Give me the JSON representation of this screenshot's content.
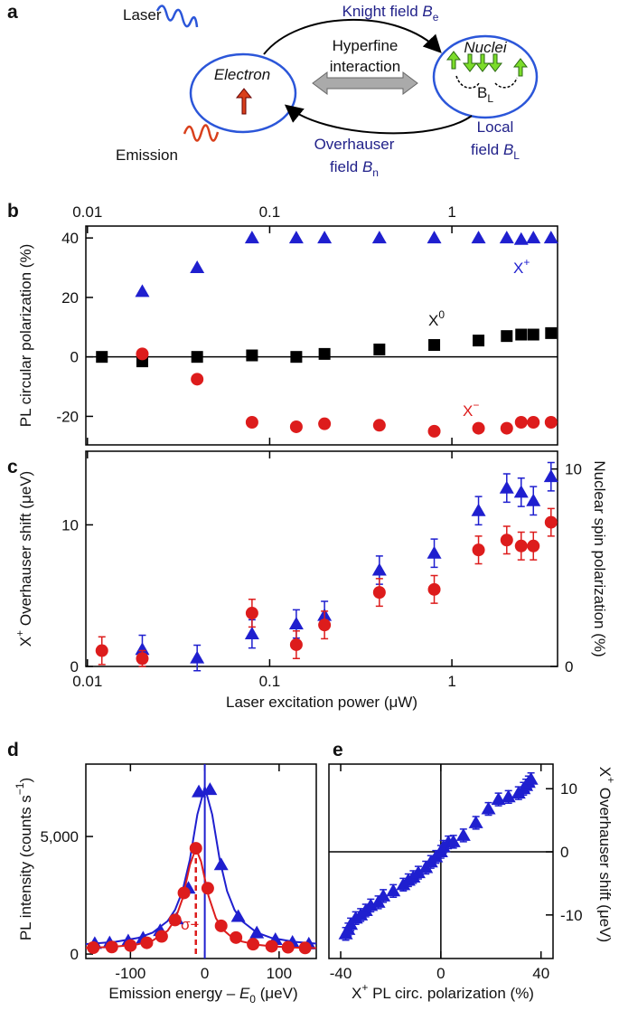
{
  "panel_labels": [
    "a",
    "b",
    "c",
    "d",
    "e"
  ],
  "diagram": {
    "laser": "Laser",
    "emission": "Emission",
    "electron": "Electron",
    "nuclei": "Nuclei",
    "knight_field": [
      "Knight field ",
      "B",
      "e"
    ],
    "hyperfine": [
      "Hyperfine",
      "interaction"
    ],
    "overhauser_field": [
      "Overhauser",
      "field ",
      "B",
      "n"
    ],
    "local_field": [
      "Local",
      "field ",
      "B",
      "L"
    ],
    "nuclear_field": [
      "B",
      "L"
    ]
  },
  "chart_data": [
    {
      "type": "scatter",
      "ylabel": "PL circular polarization (%)",
      "xscale": "log",
      "xlim": [
        0.0098,
        3.8
      ],
      "xticks": [
        0.01,
        0.1,
        1
      ],
      "xtick_position": "top",
      "ylim": [
        -29.6,
        44
      ],
      "yticks": [
        -20,
        0,
        20,
        40
      ],
      "zero_line": true,
      "series": [
        {
          "name": [
            "X",
            "+"
          ],
          "color": "#1f1fcf",
          "marker": "triangle",
          "x": [
            0.02,
            0.04,
            0.08,
            0.14,
            0.2,
            0.4,
            0.8,
            1.4,
            2,
            2.4,
            2.8,
            3.5
          ],
          "values": [
            22,
            30,
            40,
            40,
            40,
            40,
            40,
            40,
            40,
            39.5,
            40,
            40
          ]
        },
        {
          "name": [
            "X",
            "0"
          ],
          "color": "#000000",
          "marker": "square",
          "x": [
            0.012,
            0.02,
            0.04,
            0.08,
            0.14,
            0.2,
            0.4,
            0.8,
            1.4,
            2,
            2.4,
            2.8,
            3.5
          ],
          "values": [
            0,
            -1.5,
            0,
            0.5,
            0,
            1,
            2.5,
            4,
            5.5,
            7,
            7.5,
            7.5,
            8
          ]
        },
        {
          "name": [
            "X",
            "−"
          ],
          "color": "#dd1c1c",
          "marker": "circle",
          "x": [
            0.02,
            0.04,
            0.08,
            0.14,
            0.2,
            0.4,
            0.8,
            1.4,
            2,
            2.4,
            2.8,
            3.5
          ],
          "values": [
            1,
            -7.5,
            -22,
            -23.5,
            -22.5,
            -23,
            -25,
            -24,
            -24,
            -22,
            -22,
            -22
          ]
        }
      ]
    },
    {
      "type": "scatter",
      "xlabel": "Laser excitation power (μW)",
      "ylabel": [
        "X",
        "+",
        " Overhauser shift (μeV)"
      ],
      "y2label": "Nuclear spin polarization (%)",
      "xscale": "log",
      "xlim": [
        0.0098,
        3.8
      ],
      "xticks": [
        0.01,
        0.1,
        1
      ],
      "ylim": [
        0,
        15.2
      ],
      "yticks": [
        0,
        10
      ],
      "y2lim": [
        0,
        10.9
      ],
      "y2ticks": [
        0,
        10
      ],
      "series": [
        {
          "color": "#1f1fcf",
          "marker": "triangle",
          "x": [
            0.02,
            0.04,
            0.08,
            0.14,
            0.2,
            0.4,
            0.8,
            1.4,
            2,
            2.4,
            2.8,
            3.5
          ],
          "values": [
            1.2,
            0.6,
            2.3,
            3,
            3.6,
            6.8,
            8,
            11,
            12.6,
            12.3,
            11.7,
            13.4
          ],
          "errors": [
            1,
            0.9,
            1,
            1,
            1,
            1,
            1,
            1,
            1,
            1,
            1,
            1
          ]
        },
        {
          "color": "#dd1c1c",
          "marker": "circle",
          "axis": "y2",
          "x": [
            0.012,
            0.02,
            0.08,
            0.14,
            0.2,
            0.4,
            0.8,
            1.4,
            2,
            2.4,
            2.8,
            3.5
          ],
          "values": [
            0.8,
            0.4,
            2.7,
            1.1,
            2.1,
            3.75,
            3.9,
            5.9,
            6.4,
            6.1,
            6.1,
            7.3
          ],
          "errors": [
            0.7,
            0.4,
            0.7,
            0.7,
            0.7,
            0.7,
            0.7,
            0.7,
            0.7,
            0.7,
            0.7,
            0.7
          ]
        }
      ]
    },
    {
      "type": "scatter",
      "xlabel": [
        "Emission energy – ",
        "E",
        "0",
        " (μeV)"
      ],
      "ylabel": [
        "PL intensity (counts s",
        "−1",
        ")"
      ],
      "xlim": [
        -160,
        150
      ],
      "xticks": [
        -100,
        0,
        100
      ],
      "ylim": [
        -190,
        8080
      ],
      "yticks": [
        0,
        {
          "value": 5000,
          "label": "5,000"
        }
      ],
      "vline": 0,
      "annotation": "σ−",
      "peak_line": {
        "x": -12,
        "y": 4500
      },
      "series": [
        {
          "color": "#1f1fcf",
          "marker": "triangle",
          "x": [
            -148,
            -128,
            -103,
            -83,
            -60,
            -38,
            -22,
            -8,
            7,
            22,
            45,
            70,
            95,
            118,
            140
          ],
          "values": [
            450,
            480,
            560,
            680,
            1000,
            1500,
            2800,
            6900,
            7000,
            3800,
            1600,
            900,
            620,
            500,
            430
          ],
          "fit": {
            "x": [
              -160,
              -150,
              -120,
              -90,
              -70,
              -50,
              -40,
              -30,
              -20,
              -10,
              0,
              10,
              20,
              30,
              40,
              50,
              70,
              90,
              120,
              150
            ],
            "values": [
              426,
              443,
              521,
              684,
              912,
              1402,
              1878,
              2678,
              4024,
              5934,
              7100,
              5934,
              4024,
              2678,
              1878,
              1402,
              912,
              684,
              521,
              443
            ]
          }
        },
        {
          "color": "#dd1c1c",
          "marker": "circle",
          "x": [
            -150,
            -125,
            -100,
            -78,
            -58,
            -40,
            -28,
            -12,
            4,
            22,
            42,
            65,
            90,
            112,
            135
          ],
          "values": [
            270,
            300,
            360,
            480,
            750,
            1450,
            2600,
            4500,
            2800,
            1200,
            700,
            420,
            330,
            290,
            260
          ],
          "fit": {
            "x": [
              -160,
              -150,
              -120,
              -90,
              -70,
              -50,
              -40,
              -30,
              -20,
              -12,
              -5,
              5,
              15,
              25,
              35,
              50,
              70,
              90,
              120,
              150
            ],
            "values": [
              263,
              272,
              316,
              417,
              578,
              989,
              1457,
              2350,
              3790,
              4500,
              3937,
              2473,
              1524,
              1024,
              750,
              533,
              398,
              331,
              278,
              253
            ]
          }
        }
      ]
    },
    {
      "type": "scatter",
      "xlabel": [
        "X",
        "+",
        " PL circ. polarization (%)"
      ],
      "y2label": [
        "X",
        "+",
        " Overhauser shift (μeV)"
      ],
      "xlim": [
        -44.7,
        44.8
      ],
      "xticks": [
        -40,
        0,
        40
      ],
      "y2lim": [
        -16.9,
        13.9
      ],
      "y2ticks": [
        -10,
        0,
        10
      ],
      "zero_lines": true,
      "series": [
        {
          "color": "#1f1fcf",
          "marker": "triangle",
          "axis": "y2",
          "x": [
            -38,
            -37,
            -36,
            -34,
            -32,
            -30,
            -28,
            -25,
            -23,
            -19,
            -15,
            -13,
            -11,
            -9,
            -6,
            -4,
            -2,
            0,
            1,
            3,
            5,
            9,
            14,
            19,
            23,
            27,
            31,
            33,
            34,
            35,
            36
          ],
          "values": [
            -13,
            -12.3,
            -11.5,
            -10.5,
            -10,
            -9.3,
            -8.5,
            -8,
            -7,
            -6.2,
            -5.2,
            -4.5,
            -4,
            -3.3,
            -2.5,
            -1.6,
            -0.8,
            0,
            0.8,
            1.5,
            1.6,
            2.6,
            4.6,
            6.8,
            8.3,
            8.7,
            9.3,
            10,
            10.5,
            11,
            11.5
          ],
          "errors": [
            1,
            1,
            1,
            1,
            1,
            1,
            1,
            1,
            1,
            1,
            1,
            1,
            1,
            1,
            1,
            1,
            1,
            1,
            1,
            1,
            1,
            1,
            1,
            1,
            1,
            1,
            1,
            1,
            1,
            1,
            1
          ]
        }
      ]
    }
  ]
}
